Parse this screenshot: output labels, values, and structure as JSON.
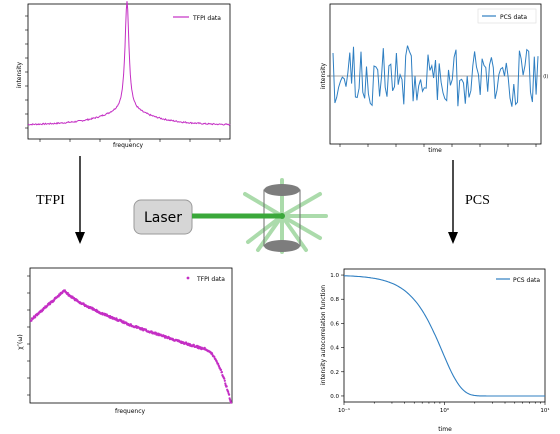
{
  "panels": {
    "top_left": {
      "legend": "TFPI data",
      "xlabel": "frequency",
      "ylabel": "intensity",
      "color": "#c42fc4"
    },
    "top_right": {
      "legend": "PCS data",
      "xlabel": "time",
      "ylabel": "intensity",
      "mean_label": "⟨I⟩",
      "color": "#2f7fc2"
    },
    "bottom_left": {
      "legend": "TFPI data",
      "xlabel": "frequency",
      "ylabel": "χ″(ω)",
      "color": "#c42fc4"
    },
    "bottom_right": {
      "legend": "PCS data",
      "xlabel": "time",
      "ylabel": "intensity autocorrelation function",
      "yticks": [
        "1.0",
        "0.8",
        "0.6",
        "0.4",
        "0.2",
        "0.0"
      ],
      "xticks": [
        "10⁻¹",
        "10⁰",
        "10¹"
      ],
      "color": "#2f7fc2"
    }
  },
  "arrows": {
    "left_label": "TFPI",
    "right_label": "PCS"
  },
  "laser": {
    "label": "Laser",
    "beam_color": "#3aa83a"
  },
  "chart_data": [
    {
      "type": "line",
      "series": [
        {
          "name": "TFPI data",
          "shape": "narrow spectral peak on broad background"
        }
      ],
      "xlabel": "frequency",
      "ylabel": "intensity",
      "grid": false,
      "legend": "top-right"
    },
    {
      "type": "line",
      "series": [
        {
          "name": "PCS data",
          "shape": "fluctuating intensity around mean"
        }
      ],
      "xlabel": "time",
      "ylabel": "intensity",
      "grid": false,
      "legend": "top-right"
    },
    {
      "type": "scatter",
      "series": [
        {
          "name": "TFPI data",
          "shape": "broad hump decaying to sharp drop"
        }
      ],
      "xlabel": "frequency",
      "ylabel": "χ″(ω)",
      "grid": false,
      "legend": "top-right"
    },
    {
      "type": "line",
      "series": [
        {
          "name": "PCS data",
          "x": [
            0.1,
            0.2,
            0.4,
            0.6,
            0.8,
            1.0,
            1.2,
            1.5,
            2.0,
            10
          ],
          "y": [
            1.0,
            0.99,
            0.95,
            0.78,
            0.55,
            0.32,
            0.13,
            0.02,
            0.0,
            0.0
          ]
        }
      ],
      "xlabel": "time",
      "ylabel": "intensity autocorrelation function",
      "xscale": "log",
      "xlim": [
        0.1,
        10
      ],
      "ylim": [
        -0.05,
        1.05
      ],
      "grid": false,
      "legend": "top-right"
    }
  ]
}
